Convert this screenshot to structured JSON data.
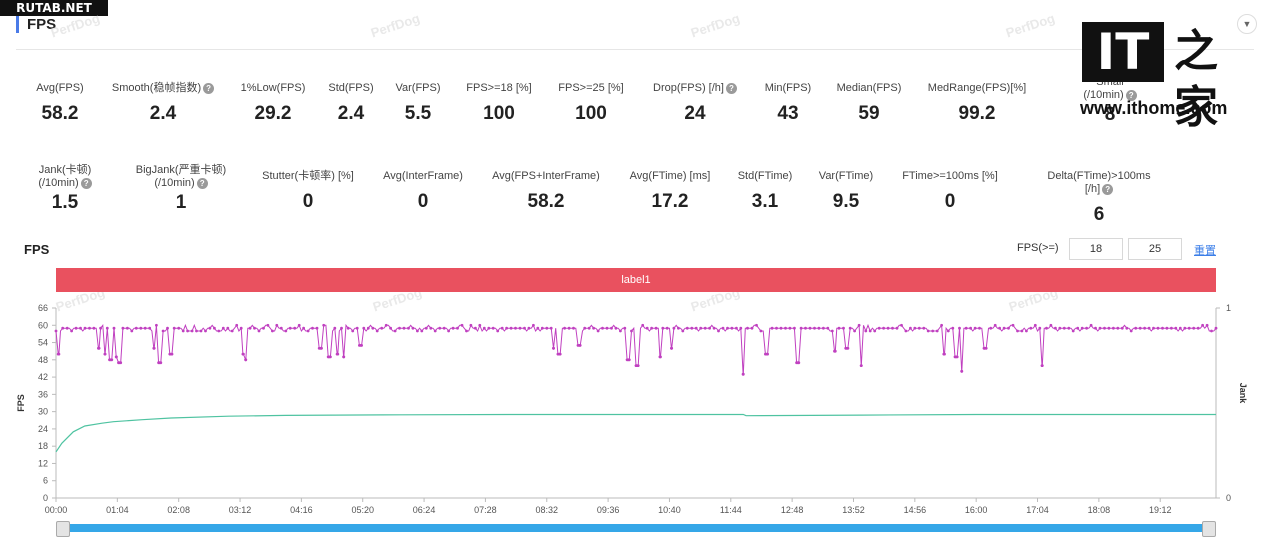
{
  "source_tag": "RUTAB.NET",
  "section_title": "FPS",
  "logo": {
    "it": "IT",
    "cn": "之家",
    "url": "www.ithome.com"
  },
  "watermark": "PerfDog",
  "stats_row1": [
    {
      "label": "Avg(FPS)",
      "value": "58.2",
      "help": false
    },
    {
      "label": "Smooth(稳帧指数)",
      "value": "2.4",
      "help": true
    },
    {
      "label": "1%Low(FPS)",
      "value": "29.2",
      "help": false
    },
    {
      "label": "Std(FPS)",
      "value": "2.4",
      "help": false
    },
    {
      "label": "Var(FPS)",
      "value": "5.5",
      "help": false
    },
    {
      "label": "FPS>=18 [%]",
      "value": "100",
      "help": false
    },
    {
      "label": "FPS>=25 [%]",
      "value": "100",
      "help": false
    },
    {
      "label": "Drop(FPS) [/h]",
      "value": "24",
      "help": true
    },
    {
      "label": "Min(FPS)",
      "value": "43",
      "help": false
    },
    {
      "label": "Median(FPS)",
      "value": "59",
      "help": false
    },
    {
      "label": "MedRange(FPS)[%]",
      "value": "99.2",
      "help": false
    },
    {
      "label": "Small",
      "label2": "(/10min)",
      "value": "8",
      "help": true
    }
  ],
  "stats_row2": [
    {
      "label": "Jank(卡顿)",
      "label2": "(/10min)",
      "value": "1.5",
      "help": true
    },
    {
      "label": "BigJank(严重卡顿)",
      "label2": "(/10min)",
      "value": "1",
      "help": true
    },
    {
      "label": "Stutter(卡顿率) [%]",
      "value": "0",
      "help": false
    },
    {
      "label": "Avg(InterFrame)",
      "value": "0",
      "help": false
    },
    {
      "label": "Avg(FPS+InterFrame)",
      "value": "58.2",
      "help": false
    },
    {
      "label": "Avg(FTime) [ms]",
      "value": "17.2",
      "help": false
    },
    {
      "label": "Std(FTime)",
      "value": "3.1",
      "help": false
    },
    {
      "label": "Var(FTime)",
      "value": "9.5",
      "help": false
    },
    {
      "label": "FTime>=100ms [%]",
      "value": "0",
      "help": false
    },
    {
      "label": "Delta(FTime)>100ms [/h]",
      "value": "6",
      "help": true
    }
  ],
  "chart_header": {
    "title": "FPS",
    "threshold_label": "FPS(>=)",
    "threshold_1": "18",
    "threshold_2": "25",
    "reset_label": "重置"
  },
  "label_bar": "label1",
  "chart_data": {
    "type": "line",
    "ylabel": "FPS",
    "y2label": "Jank",
    "ylim": [
      0,
      66
    ],
    "yticks": [
      0,
      6,
      12,
      18,
      24,
      30,
      36,
      42,
      48,
      54,
      60,
      66
    ],
    "y2lim": [
      0,
      1
    ],
    "y2ticks": [
      0,
      1
    ],
    "xticks": [
      "00:00",
      "01:04",
      "02:08",
      "03:12",
      "04:16",
      "05:20",
      "06:24",
      "07:28",
      "08:32",
      "09:36",
      "10:40",
      "11:44",
      "12:48",
      "13:52",
      "14:56",
      "16:00",
      "17:04",
      "18:08",
      "19:12"
    ],
    "x_unit_minutes_max": 20.17,
    "series": [
      {
        "kind": "fps",
        "color": "#c040c0",
        "baseline": 59,
        "dips": [
          {
            "t": 0.05,
            "v": 50
          },
          {
            "t": 0.75,
            "v": 52
          },
          {
            "t": 0.85,
            "v": 50
          },
          {
            "t": 0.95,
            "v": 48
          },
          {
            "t": 1.05,
            "v": 49
          },
          {
            "t": 1.1,
            "v": 47
          },
          {
            "t": 1.7,
            "v": 52
          },
          {
            "t": 1.8,
            "v": 47
          },
          {
            "t": 2.0,
            "v": 50
          },
          {
            "t": 3.25,
            "v": 50
          },
          {
            "t": 3.3,
            "v": 48
          },
          {
            "t": 4.6,
            "v": 52
          },
          {
            "t": 4.75,
            "v": 49
          },
          {
            "t": 4.9,
            "v": 50
          },
          {
            "t": 5.0,
            "v": 49
          },
          {
            "t": 5.3,
            "v": 53
          },
          {
            "t": 8.65,
            "v": 52
          },
          {
            "t": 8.75,
            "v": 50
          },
          {
            "t": 9.1,
            "v": 53
          },
          {
            "t": 9.95,
            "v": 48
          },
          {
            "t": 10.1,
            "v": 46
          },
          {
            "t": 10.5,
            "v": 49
          },
          {
            "t": 10.7,
            "v": 52
          },
          {
            "t": 11.95,
            "v": 43
          },
          {
            "t": 12.35,
            "v": 50
          },
          {
            "t": 12.9,
            "v": 47
          },
          {
            "t": 13.55,
            "v": 51
          },
          {
            "t": 13.75,
            "v": 52
          },
          {
            "t": 14.0,
            "v": 46
          },
          {
            "t": 15.45,
            "v": 50
          },
          {
            "t": 15.65,
            "v": 49
          },
          {
            "t": 15.75,
            "v": 44
          },
          {
            "t": 16.15,
            "v": 52
          },
          {
            "t": 17.15,
            "v": 46
          }
        ]
      },
      {
        "kind": "average",
        "color": "#4fc3a1",
        "points": [
          [
            0,
            16
          ],
          [
            0.1,
            19
          ],
          [
            0.3,
            23
          ],
          [
            0.5,
            25
          ],
          [
            0.8,
            26
          ],
          [
            1.0,
            26.5
          ],
          [
            1.5,
            27.2
          ],
          [
            2.0,
            27.8
          ],
          [
            3.0,
            28.4
          ],
          [
            4.0,
            28.7
          ],
          [
            6.0,
            28.9
          ],
          [
            8.0,
            29.0
          ],
          [
            10.0,
            29.0
          ],
          [
            11.95,
            29.0
          ],
          [
            12.0,
            28.6
          ],
          [
            14.0,
            28.8
          ],
          [
            16.0,
            29.0
          ],
          [
            20.17,
            29.0
          ]
        ]
      }
    ]
  }
}
